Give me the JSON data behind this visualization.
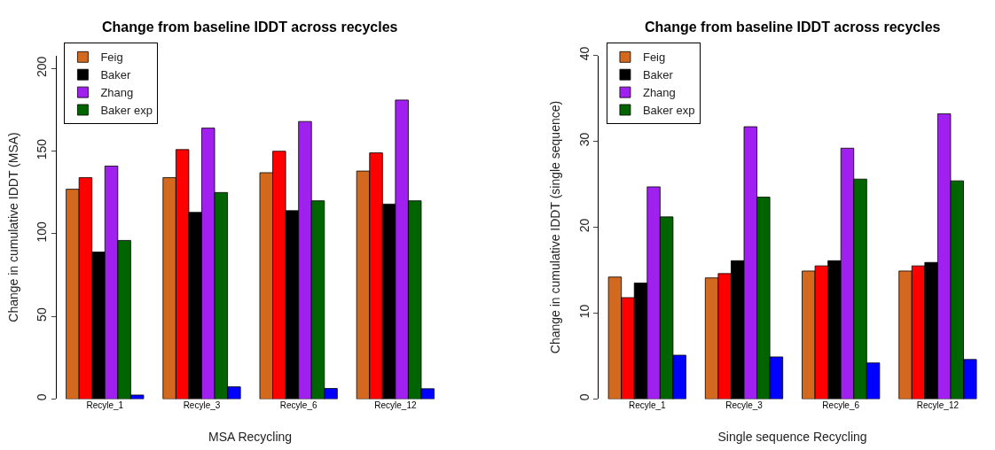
{
  "chart_data": [
    {
      "type": "bar",
      "title": "Change from baseline IDDT across recycles",
      "xlabel": "MSA Recycling",
      "ylabel": "Change in cumulative IDDT (MSA)",
      "categories": [
        "Recyle_1",
        "Recyle_3",
        "Recyle_6",
        "Recyle_12"
      ],
      "ylim": [
        0,
        208
      ],
      "yticks": [
        0,
        50,
        100,
        150,
        200
      ],
      "legend": "top left",
      "series": [
        {
          "name": "Feig",
          "color": "#d2691e",
          "values": [
            127,
            134,
            137,
            138
          ]
        },
        {
          "color": "#ff0000",
          "values": [
            134,
            151,
            150,
            149
          ]
        },
        {
          "name": "Baker",
          "color": "#000000",
          "values": [
            89,
            113,
            114,
            118
          ]
        },
        {
          "name": "Zhang",
          "color": "#a020f0",
          "values": [
            141,
            164,
            168,
            181
          ]
        },
        {
          "name": "Baker exp",
          "color": "#006400",
          "values": [
            96,
            125,
            120,
            120
          ]
        },
        {
          "color": "#0000ff",
          "values": [
            2.4,
            7.4,
            6.4,
            6.2
          ]
        }
      ]
    },
    {
      "type": "bar",
      "title": "Change from baseline IDDT across recycles",
      "xlabel": "Single sequence Recycling",
      "ylabel": "Change in cumulative IDDT (single sequence)",
      "categories": [
        "Recyle_1",
        "Recyle_3",
        "Recyle_6",
        "Recyle_12"
      ],
      "ylim": [
        0,
        40
      ],
      "yticks": [
        0,
        10,
        20,
        30,
        40
      ],
      "legend": "top left",
      "series": [
        {
          "name": "Feig",
          "color": "#d2691e",
          "values": [
            14.2,
            14.1,
            14.9,
            14.9
          ]
        },
        {
          "color": "#ff0000",
          "values": [
            11.8,
            14.6,
            15.5,
            15.5
          ]
        },
        {
          "name": "Baker",
          "color": "#000000",
          "values": [
            13.5,
            16.1,
            16.1,
            15.9
          ]
        },
        {
          "name": "Zhang",
          "color": "#a020f0",
          "values": [
            24.7,
            31.7,
            29.2,
            33.2
          ]
        },
        {
          "name": "Baker exp",
          "color": "#006400",
          "values": [
            21.2,
            23.5,
            25.6,
            25.4
          ]
        },
        {
          "color": "#0000ff",
          "values": [
            5.1,
            4.9,
            4.2,
            4.6
          ]
        }
      ]
    }
  ]
}
